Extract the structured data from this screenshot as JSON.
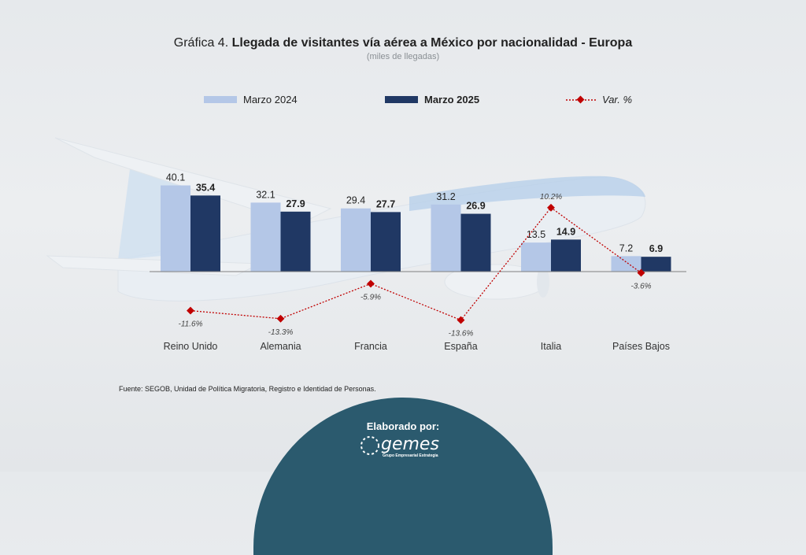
{
  "title": {
    "prefix": "Gráfica 4.",
    "main": "Llegada de visitantes vía aérea a México por nacionalidad - Europa",
    "subtitle": "(miles de llegadas)"
  },
  "colors": {
    "series_2024": "#b4c7e7",
    "series_2025": "#203864",
    "var_line": "#c00000",
    "axis": "#808080",
    "footer_bg": "#2b5a6e"
  },
  "chart_data": {
    "type": "bar",
    "categories": [
      "Reino Unido",
      "Alemania",
      "Francia",
      "España",
      "Italia",
      "Países Bajos"
    ],
    "series": [
      {
        "name": "Marzo 2024",
        "values": [
          40.1,
          32.1,
          29.4,
          31.2,
          13.5,
          7.2
        ],
        "labels": [
          "40.1",
          "32.1",
          "29.4",
          "31.2",
          "13.5",
          "7.2"
        ]
      },
      {
        "name": "Marzo 2025",
        "values": [
          35.4,
          27.9,
          27.7,
          26.9,
          14.9,
          6.9
        ],
        "labels": [
          "35.4",
          "27.9",
          "27.7",
          "26.9",
          "14.9",
          "6.9"
        ]
      }
    ],
    "variation": {
      "name": "Var. %",
      "values": [
        -11.6,
        -13.3,
        -5.9,
        -13.6,
        10.2,
        -3.6
      ],
      "labels": [
        "-11.6%",
        "-13.3%",
        "-5.9%",
        "-13.6%",
        "10.2%",
        "-3.6%"
      ]
    },
    "legend_position": "top",
    "grid": false
  },
  "source": "Fuente: SEGOB, Unidad de Política Migratoria, Registro e Identidad de Personas.",
  "footer": {
    "label": "Elaborado por:",
    "brand": "gemes",
    "tagline": "Grupo Empresarial Estrategia"
  }
}
